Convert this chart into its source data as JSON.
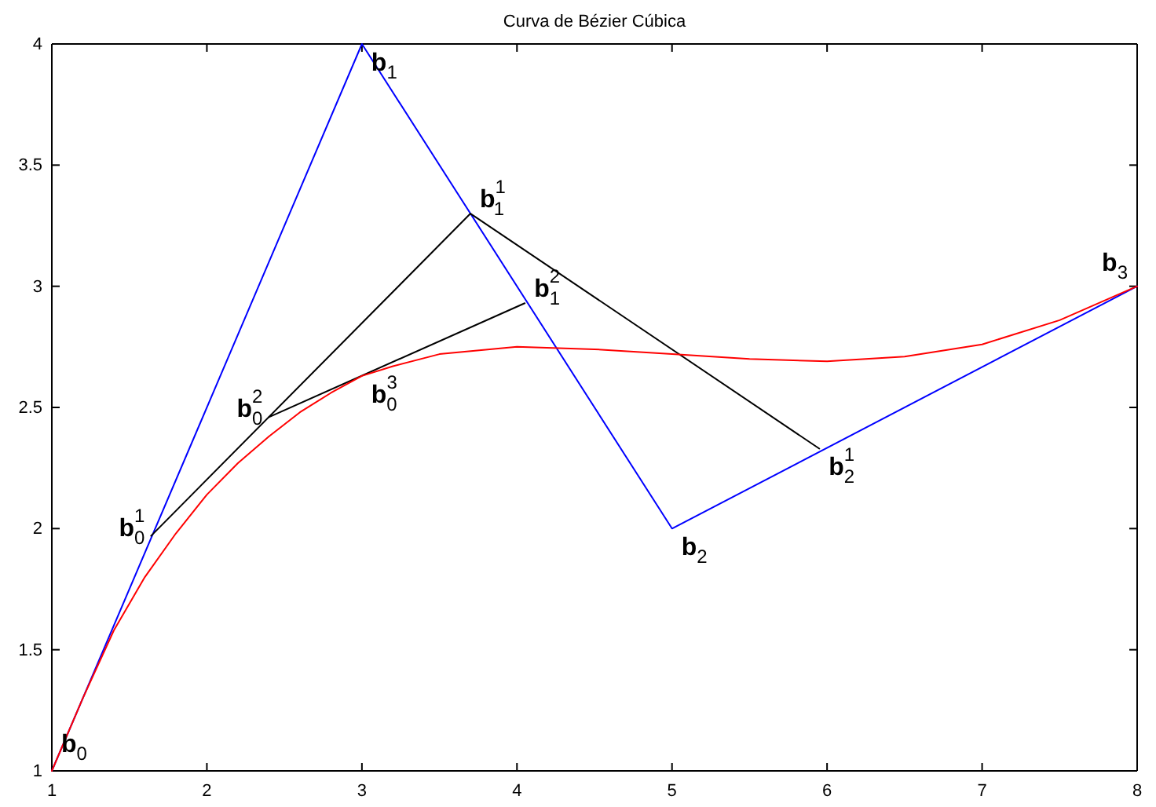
{
  "chart_data": {
    "type": "line",
    "title": "Curva de Bézier Cúbica",
    "marker": "none",
    "line_style": "solid",
    "grid": false,
    "xlim": [
      1,
      8
    ],
    "ylim": [
      1,
      4
    ],
    "xticks": [
      1,
      2,
      3,
      4,
      5,
      6,
      7,
      8
    ],
    "yticks": [
      1,
      1.5,
      2,
      2.5,
      3,
      3.5,
      4
    ],
    "series": [
      {
        "color": "#0000ff",
        "x": [
          1,
          3,
          5,
          8
        ],
        "values": [
          1,
          4,
          2,
          3
        ]
      },
      {
        "color": "#000000",
        "x": [
          1.64,
          3.7,
          5.95
        ],
        "values": [
          1.97,
          3.3,
          2.33
        ]
      },
      {
        "color": "#000000",
        "x": [
          2.4,
          4.05
        ],
        "values": [
          2.46,
          2.93
        ]
      },
      {
        "color": "#ff0000",
        "x": [
          1,
          1.2,
          1.4,
          1.6,
          1.8,
          2.0,
          2.2,
          2.4,
          2.6,
          2.8,
          3.0,
          3.2,
          3.5,
          4.0,
          4.5,
          5.0,
          5.5,
          6.0,
          6.5,
          7.0,
          7.5,
          8
        ],
        "values": [
          1,
          1.3,
          1.58,
          1.8,
          1.98,
          2.14,
          2.27,
          2.38,
          2.48,
          2.56,
          2.63,
          2.67,
          2.72,
          2.75,
          2.74,
          2.72,
          2.7,
          2.69,
          2.71,
          2.76,
          2.86,
          3
        ]
      }
    ],
    "annotations": [
      {
        "text": "b$_{0}$",
        "x": 1,
        "y": 1
      },
      {
        "text": "b$^{1}$$_{0}$",
        "x": 1.64,
        "y": 1.97
      },
      {
        "text": "b$_{1}$",
        "x": 3,
        "y": 4
      },
      {
        "text": "b$^{2}$$_{0}$",
        "x": 2.4,
        "y": 2.46
      },
      {
        "text": "b$^{3}$$_{0}$",
        "x": 3.0,
        "y": 2.63
      },
      {
        "text": "b$^{1}$$_{1}$",
        "x": 3.7,
        "y": 3.3
      },
      {
        "text": "b$^{2}$$_{1}$",
        "x": 4.05,
        "y": 2.93
      },
      {
        "text": "b$_{2}$",
        "x": 5,
        "y": 2
      },
      {
        "text": "b$^{1}$$_{2}$",
        "x": 5.95,
        "y": 2.33
      },
      {
        "text": "b$_{3}$",
        "x": 8,
        "y": 3
      }
    ]
  }
}
